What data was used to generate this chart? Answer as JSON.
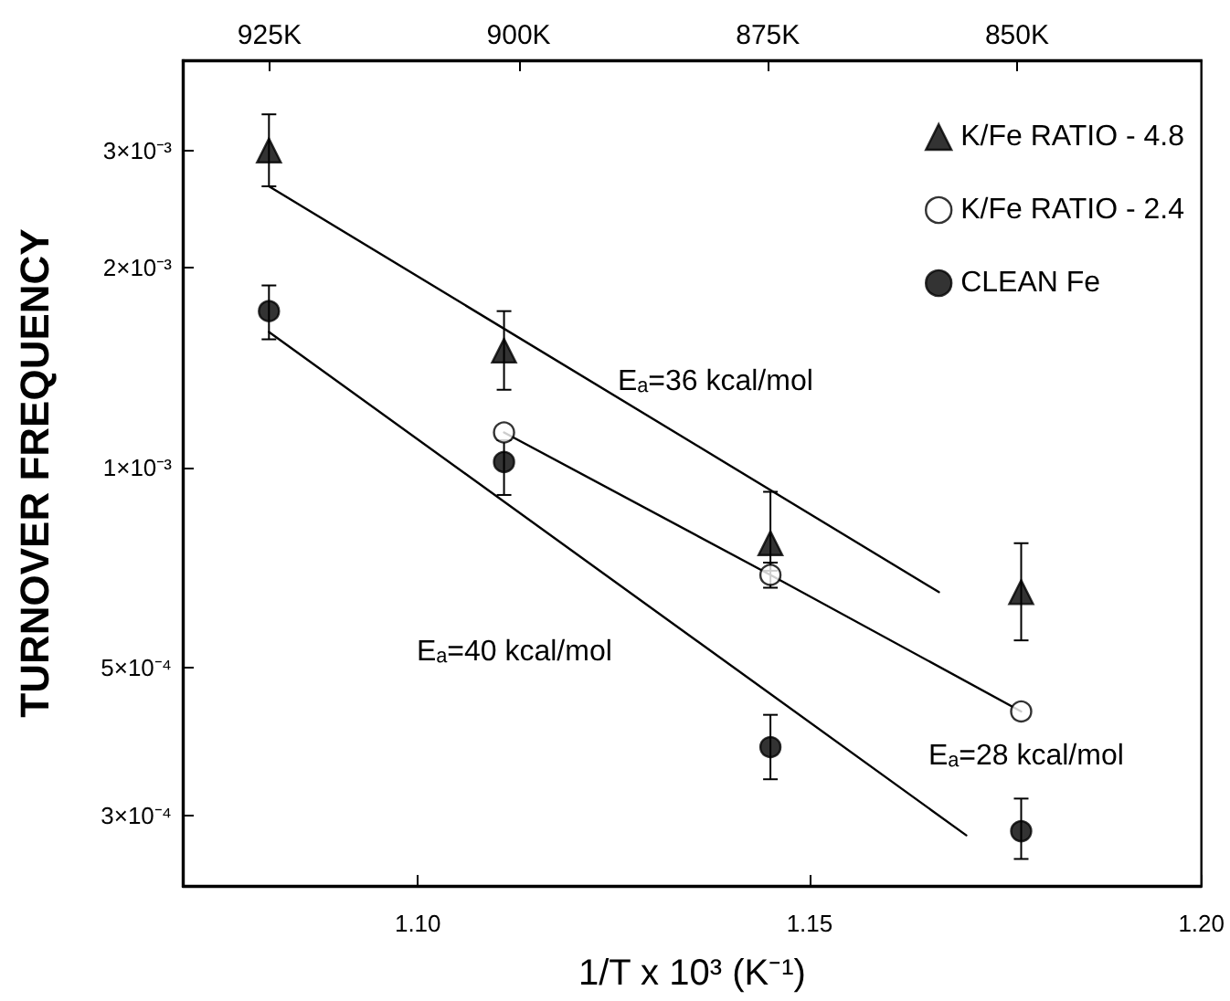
{
  "chart_data": {
    "type": "scatter",
    "xlabel": "1/T x 10³ (K⁻¹)",
    "ylabel": "TURNOVER FREQUENCY",
    "log": "y",
    "grid": false,
    "legend": "top right",
    "xlim": [
      1.07,
      1.2
    ],
    "xticks": [
      {
        "value": 1.1,
        "label": "1.10"
      },
      {
        "value": 1.15,
        "label": "1.15"
      },
      {
        "value": 1.2,
        "label": "1.20"
      }
    ],
    "x2lim": [
      933.7,
      831.5
    ],
    "x2ticks": [
      {
        "value": 925,
        "label": "925K"
      },
      {
        "value": 900,
        "label": "900K"
      },
      {
        "value": 875,
        "label": "875K"
      },
      {
        "value": 850,
        "label": "850K"
      }
    ],
    "ylim": [
      0.000235,
      0.0041
    ],
    "yticks": [
      {
        "value": 0.0003,
        "label": "3×10⁻⁴"
      },
      {
        "value": 0.0005,
        "label": "5×10⁻⁴"
      },
      {
        "value": 0.001,
        "label": "1×10⁻³"
      },
      {
        "value": 0.002,
        "label": "2×10⁻³"
      },
      {
        "value": 0.003,
        "label": "3×10⁻³"
      }
    ],
    "series": [
      {
        "name": "K/Fe RATIO - 4.8",
        "color": "#000000",
        "marker": "triangle",
        "x": [
          1.081,
          1.111,
          1.145,
          1.177
        ],
        "values": [
          0.003,
          0.0015,
          0.00077,
          0.00065
        ],
        "errors": [
          [
            0.00265,
            0.0034
          ],
          [
            0.00131,
            0.00172
          ],
          [
            0.0007,
            0.00092
          ],
          [
            0.00055,
            0.00077
          ]
        ]
      },
      {
        "name": "K/Fe RATIO - 2.4",
        "color": "#ffffff",
        "marker": "circle",
        "x": [
          1.111,
          1.145,
          1.177
        ],
        "values": [
          0.00113,
          0.00069,
          0.00043
        ],
        "errors": [
          null,
          [
            0.00066,
            0.00072
          ],
          null
        ]
      },
      {
        "name": "CLEAN Fe",
        "color": "#000000",
        "marker": "circle",
        "x": [
          1.081,
          1.111,
          1.145,
          1.177
        ],
        "values": [
          0.00172,
          0.00102,
          0.00038,
          0.000284
        ],
        "errors": [
          [
            0.00156,
            0.00188
          ],
          [
            0.00091,
            0.0011
          ],
          [
            0.00034,
            0.000425
          ],
          [
            0.000258,
            0.000318
          ]
        ]
      },
      {
        "type": "line",
        "color": "#000000",
        "marker": "none",
        "x": [
          1.081,
          1.1665
        ],
        "values": [
          0.00265,
          0.00065
        ]
      },
      {
        "type": "line",
        "color": "#000000",
        "marker": "none",
        "x": [
          1.111,
          1.145,
          1.177
        ],
        "values": [
          0.00113,
          0.00069,
          0.00043
        ]
      },
      {
        "type": "line",
        "color": "#000000",
        "marker": "none",
        "x": [
          1.081,
          1.17
        ],
        "values": [
          0.0016,
          0.00028
        ]
      }
    ],
    "annotations": [
      "Eₐ=36 kcal/mol",
      "Eₐ=40 kcal/mol",
      "Eₐ=28 kcal/mol"
    ]
  }
}
